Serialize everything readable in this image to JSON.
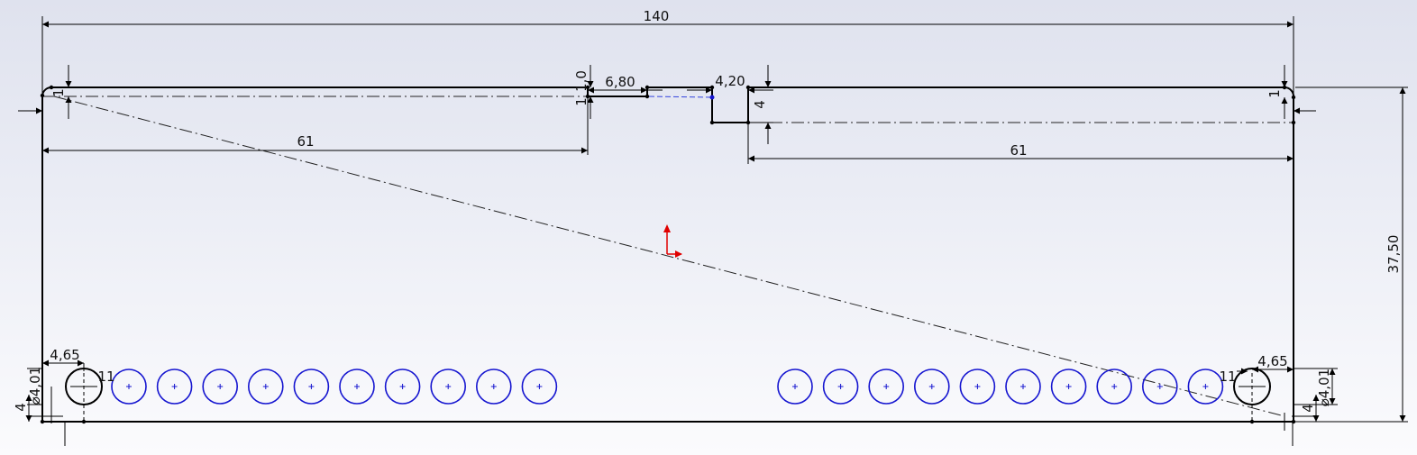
{
  "sketch": {
    "dimensions": {
      "overall_width": "140",
      "overall_height": "37,50",
      "left_slot_length": "61",
      "right_slot_length": "61",
      "notch_left_width": "6,80",
      "notch_right_width": "4,20",
      "notch_depth": "4",
      "left_slot_offset": "1",
      "right_slot_offset": "1",
      "notch_left_offset_top": "1,0",
      "notch_left_offset_bottom": "1",
      "left_hole_x": "4,65",
      "right_hole_x": "4,65",
      "left_hole_diameter": "⌀4,01",
      "right_hole_diameter": "⌀4,01",
      "left_hole_y": "4",
      "right_hole_y": "4",
      "left_hole_gap": "11",
      "right_hole_gap": "11"
    },
    "hole_rows": {
      "left_count": 10,
      "right_count": 10
    },
    "colors": {
      "geometry": "#000000",
      "holes": "#1515d0",
      "origin": "#e00000"
    }
  }
}
